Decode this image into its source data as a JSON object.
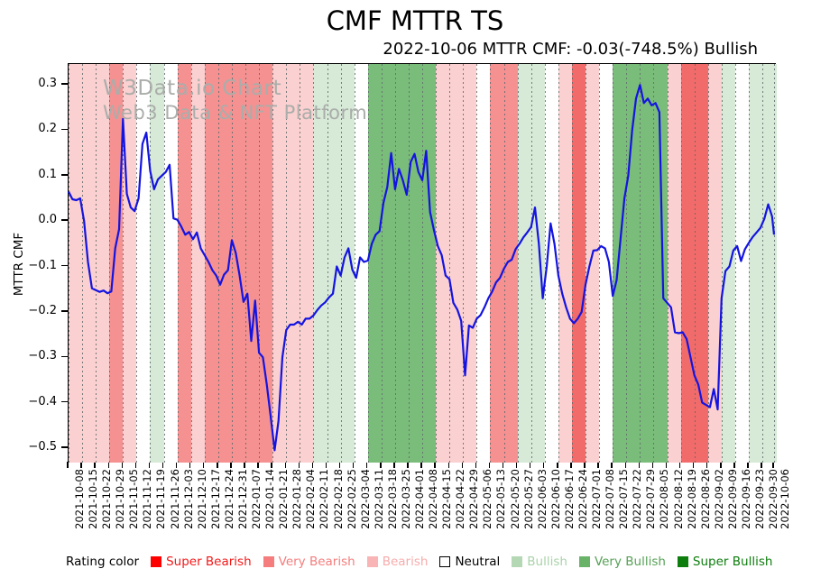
{
  "header": {
    "title": "CMF MTTR TS",
    "subtitle": "2022-10-06 MTTR CMF: -0.03(-748.5%) Bullish"
  },
  "watermark": {
    "line1": "W3Data.io Chart",
    "line2": "Web3 Data & NFT Platform"
  },
  "legend": {
    "label": "Rating color",
    "items": [
      {
        "id": "super-bearish",
        "label": "Super Bearish",
        "swatch": "#fe0000",
        "text": "#f31919",
        "border": "#fe0000"
      },
      {
        "id": "very-bearish",
        "label": "Very Bearish",
        "swatch": "#f57d7d",
        "text": "#f57d7d",
        "border": "#f57d7d"
      },
      {
        "id": "bearish",
        "label": "Bearish",
        "swatch": "#f9b5b5",
        "text": "#f7acac",
        "border": "#f9b5b5"
      },
      {
        "id": "neutral",
        "label": "Neutral",
        "swatch": "#ffffff",
        "text": "#000000",
        "border": "#000000"
      },
      {
        "id": "bullish",
        "label": "Bullish",
        "swatch": "#b3d8b3",
        "text": "#aad2aa",
        "border": "#b3d8b3"
      },
      {
        "id": "very-bullish",
        "label": "Very Bullish",
        "swatch": "#69b369",
        "text": "#56a156",
        "border": "#69b369"
      },
      {
        "id": "super-bullish",
        "label": "Super Bullish",
        "swatch": "#0d7d0d",
        "text": "#0d7d0d",
        "border": "#0d7d0d"
      }
    ]
  },
  "chart_data": {
    "type": "line",
    "title": "CMF MTTR TS",
    "ylabel": "MTTR CMF",
    "ylim": [
      -0.532,
      0.346
    ],
    "yticks": [
      "0.3",
      "0.2",
      "0.1",
      "0.0",
      "−0.1",
      "−0.2",
      "−0.3",
      "−0.4",
      "−0.5"
    ],
    "ytick_values": [
      0.3,
      0.2,
      0.1,
      0.0,
      -0.1,
      -0.2,
      -0.3,
      -0.4,
      -0.5
    ],
    "grid": "vertical-dotted-weekly",
    "legend_position": "bottom",
    "x_total_days": 363,
    "xtick_labels": [
      "2021-10-08",
      "2021-10-15",
      "2021-10-22",
      "2021-10-29",
      "2021-11-05",
      "2021-11-12",
      "2021-11-19",
      "2021-11-26",
      "2021-12-03",
      "2021-12-10",
      "2021-12-17",
      "2021-12-24",
      "2021-12-31",
      "2022-01-07",
      "2022-01-14",
      "2022-01-21",
      "2022-01-28",
      "2022-02-04",
      "2022-02-11",
      "2022-02-18",
      "2022-02-25",
      "2022-03-04",
      "2022-03-11",
      "2022-03-18",
      "2022-03-25",
      "2022-04-01",
      "2022-04-08",
      "2022-04-15",
      "2022-04-22",
      "2022-04-29",
      "2022-05-06",
      "2022-05-13",
      "2022-05-20",
      "2022-05-27",
      "2022-06-03",
      "2022-06-10",
      "2022-06-17",
      "2022-06-24",
      "2022-07-01",
      "2022-07-08",
      "2022-07-15",
      "2022-07-22",
      "2022-07-29",
      "2022-08-05",
      "2022-08-12",
      "2022-08-19",
      "2022-08-26",
      "2022-09-02",
      "2022-09-09",
      "2022-09-16",
      "2022-09-23",
      "2022-09-30",
      "2022-10-06"
    ],
    "xtick_days": [
      0,
      7,
      14,
      21,
      28,
      35,
      42,
      49,
      56,
      63,
      70,
      77,
      84,
      91,
      98,
      105,
      112,
      119,
      126,
      133,
      140,
      147,
      154,
      161,
      168,
      175,
      182,
      189,
      196,
      203,
      210,
      217,
      224,
      231,
      238,
      245,
      252,
      259,
      266,
      273,
      280,
      287,
      294,
      301,
      308,
      315,
      322,
      329,
      336,
      343,
      350,
      357,
      363
    ],
    "band_colors": {
      "super_bearish": "#f26b6b",
      "very_bearish": "#f59191",
      "bearish": "#fbd0d0",
      "neutral": "#ffffff",
      "bullish": "#d7e9d7",
      "very_bullish": "#7abc7a",
      "super_bullish": "#4ba64b"
    },
    "weekly_ratings": [
      "bearish",
      "bearish",
      "bearish",
      "very_bearish",
      "bearish",
      "neutral",
      "bullish",
      "neutral",
      "very_bearish",
      "bearish",
      "very_bearish",
      "very_bearish",
      "very_bearish",
      "very_bearish",
      "very_bearish",
      "bearish",
      "bearish",
      "bearish",
      "bullish",
      "bullish",
      "bullish",
      "neutral",
      "very_bullish",
      "very_bullish",
      "very_bullish",
      "very_bullish",
      "very_bullish",
      "bearish",
      "bearish",
      "bearish",
      "neutral",
      "very_bearish",
      "very_bearish",
      "bullish",
      "bullish",
      "neutral",
      "bearish",
      "super_bearish",
      "bearish",
      "neutral",
      "very_bullish",
      "very_bullish",
      "very_bullish",
      "very_bullish",
      "bearish",
      "super_bearish",
      "super_bearish",
      "bearish",
      "bullish",
      "neutral",
      "bullish",
      "bullish",
      "bullish"
    ],
    "series": [
      {
        "name": "MTTR CMF",
        "color": "#1414e0",
        "days": [
          0,
          2,
          4,
          6,
          8,
          10,
          12,
          14,
          16,
          18,
          20,
          22,
          24,
          26,
          28,
          30,
          32,
          34,
          36,
          38,
          40,
          42,
          44,
          46,
          48,
          50,
          52,
          54,
          56,
          58,
          60,
          62,
          64,
          66,
          68,
          70,
          72,
          74,
          76,
          78,
          80,
          82,
          84,
          86,
          88,
          90,
          92,
          94,
          96,
          98,
          100,
          102,
          104,
          106,
          108,
          110,
          112,
          114,
          116,
          118,
          120,
          122,
          124,
          126,
          128,
          130,
          132,
          134,
          136,
          138,
          140,
          142,
          144,
          146,
          148,
          150,
          152,
          154,
          156,
          158,
          160,
          162,
          164,
          166,
          168,
          170,
          172,
          174,
          176,
          178,
          180,
          182,
          184,
          186,
          188,
          190,
          192,
          194,
          196,
          198,
          200,
          202,
          204,
          206,
          208,
          210,
          212,
          214,
          216,
          218,
          220,
          222,
          224,
          226,
          228,
          230,
          232,
          234,
          236,
          238,
          240,
          242,
          244,
          246,
          248,
          250,
          252,
          254,
          256,
          258,
          260,
          262,
          264,
          266,
          268,
          270,
          272,
          274,
          276,
          278,
          280,
          282,
          284,
          286,
          288,
          290,
          292,
          294,
          296,
          298,
          300,
          302,
          304,
          306,
          308,
          310,
          312,
          314,
          316,
          318,
          320,
          322,
          324,
          326,
          328,
          330,
          332,
          334,
          336,
          338,
          340,
          342,
          344,
          346,
          348,
          350,
          352,
          354,
          356,
          358,
          360,
          362,
          363
        ],
        "values": [
          0.065,
          0.048,
          0.046,
          0.05,
          0.0,
          -0.09,
          -0.148,
          -0.152,
          -0.156,
          -0.153,
          -0.159,
          -0.155,
          -0.06,
          -0.018,
          0.225,
          0.06,
          0.03,
          0.022,
          0.05,
          0.17,
          0.195,
          0.11,
          0.07,
          0.092,
          0.1,
          0.108,
          0.124,
          0.006,
          0.003,
          -0.012,
          -0.03,
          -0.024,
          -0.04,
          -0.025,
          -0.06,
          -0.075,
          -0.09,
          -0.108,
          -0.12,
          -0.14,
          -0.118,
          -0.108,
          -0.042,
          -0.07,
          -0.12,
          -0.178,
          -0.16,
          -0.264,
          -0.175,
          -0.29,
          -0.3,
          -0.36,
          -0.43,
          -0.505,
          -0.44,
          -0.3,
          -0.24,
          -0.228,
          -0.228,
          -0.222,
          -0.228,
          -0.215,
          -0.215,
          -0.208,
          -0.196,
          -0.186,
          -0.179,
          -0.168,
          -0.16,
          -0.1,
          -0.12,
          -0.08,
          -0.06,
          -0.107,
          -0.125,
          -0.08,
          -0.09,
          -0.087,
          -0.05,
          -0.03,
          -0.022,
          0.04,
          0.075,
          0.15,
          0.07,
          0.115,
          0.09,
          0.058,
          0.13,
          0.148,
          0.108,
          0.09,
          0.155,
          0.02,
          -0.02,
          -0.055,
          -0.075,
          -0.12,
          -0.128,
          -0.18,
          -0.195,
          -0.22,
          -0.34,
          -0.23,
          -0.235,
          -0.215,
          -0.207,
          -0.19,
          -0.17,
          -0.155,
          -0.135,
          -0.125,
          -0.105,
          -0.09,
          -0.085,
          -0.062,
          -0.05,
          -0.036,
          -0.025,
          -0.013,
          0.03,
          -0.05,
          -0.17,
          -0.1,
          -0.005,
          -0.05,
          -0.12,
          -0.16,
          -0.19,
          -0.215,
          -0.225,
          -0.215,
          -0.2,
          -0.14,
          -0.1,
          -0.065,
          -0.064,
          -0.055,
          -0.06,
          -0.09,
          -0.165,
          -0.13,
          -0.04,
          0.05,
          0.1,
          0.2,
          0.27,
          0.3,
          0.26,
          0.27,
          0.255,
          0.26,
          0.24,
          -0.17,
          -0.18,
          -0.19,
          -0.245,
          -0.247,
          -0.245,
          -0.26,
          -0.3,
          -0.34,
          -0.36,
          -0.4,
          -0.405,
          -0.41,
          -0.37,
          -0.415,
          -0.17,
          -0.11,
          -0.1,
          -0.065,
          -0.055,
          -0.088,
          -0.062,
          -0.048,
          -0.035,
          -0.025,
          -0.015,
          0.005,
          0.037,
          0.01,
          -0.03
        ]
      }
    ]
  }
}
